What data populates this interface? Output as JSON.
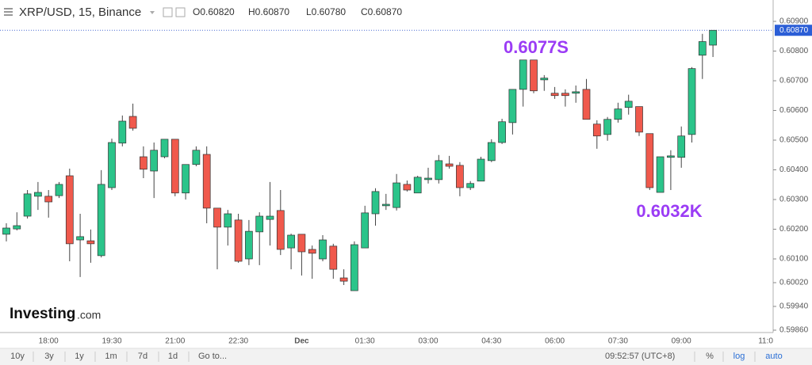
{
  "chart_data": {
    "type": "candlestick",
    "title": "XRP/USD, 15, Binance",
    "ohlc_legend": [
      "O0.60820",
      "H0.60870",
      "L0.60780",
      "C0.60870"
    ],
    "annotations": [
      "0.6077S",
      "0.6032K"
    ],
    "current_price": {
      "value": 0.6087,
      "label": "0.60870"
    },
    "up_color": "#2bc48a",
    "down_color": "#f0594c",
    "categories": [
      null,
      null,
      null,
      null,
      "18:00",
      null,
      null,
      null,
      null,
      null,
      "19:30",
      null,
      null,
      null,
      null,
      null,
      "21:00",
      null,
      null,
      null,
      null,
      null,
      "22:30",
      null,
      null,
      null,
      null,
      null,
      "Dec",
      null,
      null,
      null,
      null,
      null,
      "01:30",
      null,
      null,
      null,
      null,
      null,
      "03:00",
      null,
      null,
      null,
      null,
      null,
      "04:30",
      null,
      null,
      null,
      null,
      null,
      "06:00",
      null,
      null,
      null,
      null,
      null,
      "07:30",
      null,
      null,
      null,
      null,
      null,
      "09:00",
      null,
      null,
      null,
      null,
      null,
      null,
      null,
      "11:0"
    ],
    "open": [
      0.60183,
      0.60201,
      0.60244,
      0.60311,
      0.60311,
      0.60313,
      0.6038,
      0.60164,
      0.60161,
      0.60111,
      0.6034,
      0.6049,
      0.6058,
      0.60444,
      0.60396,
      0.60444,
      0.60503,
      0.60322,
      0.60418,
      0.60452,
      0.60271,
      0.60207,
      0.60231,
      0.601,
      0.60191,
      0.60233,
      0.60263,
      0.60137,
      0.60183,
      0.60132,
      0.601,
      0.60143,
      0.60036,
      0.59993,
      0.60137,
      0.60252,
      0.60279,
      0.60273,
      0.60351,
      0.60322,
      0.60367,
      0.60367,
      0.6042,
      0.60415,
      0.6034,
      0.60362,
      0.60431,
      0.60492,
      0.60559,
      0.60671,
      0.6077,
      0.60703,
      0.60658,
      0.60658,
      0.60658,
      0.60671,
      0.60554,
      0.60519,
      0.6057,
      0.6061,
      0.60613,
      0.60522,
      0.60324,
      0.60442,
      0.60442,
      0.60519,
      0.60786,
      0.6082,
      null,
      null,
      null,
      null,
      null
    ],
    "high": [
      0.6022,
      0.60257,
      0.60332,
      0.60359,
      0.60332,
      0.60359,
      0.60404,
      0.60252,
      0.60199,
      0.60399,
      0.60505,
      0.60583,
      0.60623,
      0.60479,
      0.60492,
      0.60503,
      0.60503,
      0.60418,
      0.60479,
      0.60479,
      0.60271,
      0.60265,
      0.60252,
      0.60231,
      0.60257,
      0.60359,
      0.60332,
      0.60185,
      0.60183,
      0.60145,
      0.6018,
      0.60151,
      0.60065,
      0.60159,
      0.60279,
      0.60338,
      0.60319,
      0.60386,
      0.60364,
      0.6038,
      0.60407,
      0.6045,
      0.60447,
      0.60426,
      0.60362,
      0.60444,
      0.60503,
      0.60572,
      0.60671,
      0.6077,
      0.6077,
      0.60719,
      0.60679,
      0.60671,
      0.60684,
      0.60706,
      0.60567,
      0.60578,
      0.60626,
      0.60653,
      0.60613,
      0.60522,
      0.60444,
      0.60466,
      0.60546,
      0.60746,
      0.60858,
      0.6087,
      null,
      null,
      null,
      null,
      null
    ],
    "low": [
      0.60159,
      0.60196,
      0.60236,
      0.60265,
      0.60239,
      0.60305,
      0.60092,
      0.60039,
      0.60087,
      0.60105,
      0.60332,
      0.60479,
      0.60532,
      0.60372,
      0.60305,
      0.60439,
      0.60311,
      0.603,
      0.60412,
      0.6022,
      0.60065,
      0.60145,
      0.60087,
      0.60079,
      0.60079,
      0.60145,
      0.60113,
      0.60065,
      0.60044,
      0.60033,
      0.60092,
      0.60033,
      0.60012,
      0.59993,
      0.60137,
      0.60212,
      0.60265,
      0.60263,
      0.60327,
      0.60322,
      0.60354,
      0.60354,
      0.60404,
      0.60311,
      0.60332,
      0.60362,
      0.60426,
      0.60487,
      0.60519,
      0.60613,
      0.60658,
      0.60666,
      0.60639,
      0.60613,
      0.60626,
      0.6057,
      0.60471,
      0.60498,
      0.60559,
      0.60586,
      0.60514,
      0.60332,
      0.60324,
      0.60332,
      0.60407,
      0.60492,
      0.60706,
      0.6078,
      null,
      null,
      null,
      null,
      null
    ],
    "close": [
      0.60204,
      0.60212,
      0.60319,
      0.60324,
      0.60292,
      0.60351,
      0.60151,
      0.60175,
      0.60151,
      0.60351,
      0.60492,
      0.60564,
      0.6054,
      0.60402,
      0.60466,
      0.60503,
      0.60322,
      0.60418,
      0.60466,
      0.60271,
      0.60207,
      0.60252,
      0.60092,
      0.60193,
      0.60244,
      0.60244,
      0.60132,
      0.6018,
      0.60124,
      0.60119,
      0.60164,
      0.60065,
      0.60025,
      0.60148,
      0.60255,
      0.60327,
      0.60284,
      0.60356,
      0.60332,
      0.60375,
      0.60372,
      0.60431,
      0.60412,
      0.6034,
      0.60354,
      0.60436,
      0.60492,
      0.60562,
      0.60671,
      0.6077,
      0.60666,
      0.60709,
      0.6065,
      0.6065,
      0.60663,
      0.6057,
      0.60514,
      0.6057,
      0.60605,
      0.60631,
      0.60527,
      0.6034,
      0.60444,
      0.60447,
      0.60514,
      0.60741,
      0.60832,
      0.6087,
      null,
      null,
      null,
      null,
      null
    ],
    "ylim": [
      0.59852,
      0.60972
    ],
    "yticks": [
      {
        "value": 0.609,
        "label": "0.60900"
      },
      {
        "value": 0.608,
        "label": "0.60800"
      },
      {
        "value": 0.607,
        "label": "0.60700"
      },
      {
        "value": 0.606,
        "label": "0.60600"
      },
      {
        "value": 0.605,
        "label": "0.60500"
      },
      {
        "value": 0.604,
        "label": "0.60400"
      },
      {
        "value": 0.603,
        "label": "0.60300"
      },
      {
        "value": 0.602,
        "label": "0.60200"
      },
      {
        "value": 0.601,
        "label": "0.60100"
      },
      {
        "value": 0.6002,
        "label": "0.60020"
      },
      {
        "value": 0.5994,
        "label": "0.59940"
      },
      {
        "value": 0.5986,
        "label": "0.59860"
      }
    ],
    "grid": false
  },
  "logo": {
    "name": "Investing",
    "suffix": ".com"
  },
  "toolbar": {
    "ranges": [
      "10y",
      "3y",
      "1y",
      "1m",
      "7d",
      "1d"
    ],
    "goto": "Go to...",
    "clock": "09:52:57 (UTC+8)",
    "percent": "%",
    "log": "log",
    "auto": "auto"
  }
}
